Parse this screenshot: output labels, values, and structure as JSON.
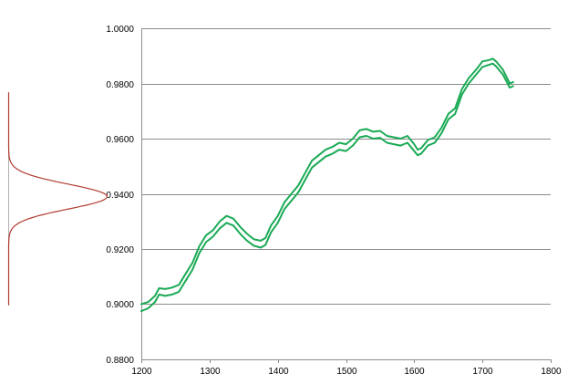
{
  "chart_data": [
    {
      "type": "line",
      "title": "",
      "xlabel": "",
      "ylabel": "",
      "xlim": [
        1200,
        1800
      ],
      "ylim": [
        0.88,
        1.0
      ],
      "x_ticks": [
        "1200",
        "1300",
        "1400",
        "1500",
        "1600",
        "1700",
        "1800"
      ],
      "y_ticks": [
        "0.8800",
        "0.9000",
        "0.9200",
        "0.9400",
        "0.9600",
        "0.9800",
        "1.0000"
      ],
      "grid": "horizontal",
      "legend": "none",
      "colors": {
        "series": "#1aaa55",
        "gridline": "#8c8c8c",
        "axis": "#8c8c8c"
      },
      "series": [
        {
          "x": [
            1200,
            1210,
            1220,
            1226,
            1235,
            1245,
            1255,
            1265,
            1275,
            1285,
            1295,
            1305,
            1315,
            1325,
            1335,
            1345,
            1355,
            1365,
            1375,
            1382,
            1390,
            1400,
            1410,
            1420,
            1430,
            1440,
            1450,
            1460,
            1470,
            1480,
            1490,
            1500,
            1510,
            1520,
            1530,
            1540,
            1550,
            1560,
            1570,
            1580,
            1590,
            1600,
            1605,
            1610,
            1620,
            1630,
            1640,
            1650,
            1660,
            1670,
            1680,
            1690,
            1700,
            1710,
            1715,
            1720,
            1730,
            1740,
            1745
          ],
          "y": [
            0.9,
            0.9008,
            0.903,
            0.9058,
            0.9055,
            0.906,
            0.907,
            0.911,
            0.915,
            0.921,
            0.925,
            0.9268,
            0.93,
            0.932,
            0.931,
            0.928,
            0.9255,
            0.9235,
            0.923,
            0.924,
            0.9285,
            0.932,
            0.937,
            0.94,
            0.943,
            0.9475,
            0.952,
            0.954,
            0.956,
            0.957,
            0.9585,
            0.958,
            0.96,
            0.963,
            0.9635,
            0.9625,
            0.9628,
            0.961,
            0.9605,
            0.96,
            0.961,
            0.958,
            0.956,
            0.9565,
            0.9595,
            0.9605,
            0.964,
            0.969,
            0.971,
            0.978,
            0.982,
            0.9848,
            0.988,
            0.9885,
            0.989,
            0.988,
            0.985,
            0.98,
            0.9805
          ]
        },
        {
          "x": [
            1200,
            1210,
            1220,
            1226,
            1235,
            1245,
            1255,
            1265,
            1275,
            1285,
            1295,
            1305,
            1315,
            1325,
            1335,
            1345,
            1355,
            1365,
            1375,
            1382,
            1390,
            1400,
            1410,
            1420,
            1430,
            1440,
            1450,
            1460,
            1470,
            1480,
            1490,
            1500,
            1510,
            1520,
            1530,
            1540,
            1550,
            1560,
            1570,
            1580,
            1590,
            1600,
            1605,
            1610,
            1620,
            1630,
            1640,
            1650,
            1660,
            1670,
            1680,
            1690,
            1700,
            1710,
            1715,
            1720,
            1730,
            1740,
            1745
          ],
          "y": [
            0.8975,
            0.8985,
            0.9008,
            0.9035,
            0.903,
            0.9035,
            0.9045,
            0.9085,
            0.9125,
            0.9185,
            0.9225,
            0.9245,
            0.9275,
            0.9295,
            0.9285,
            0.9255,
            0.923,
            0.9212,
            0.9205,
            0.9215,
            0.926,
            0.9295,
            0.9345,
            0.9375,
            0.9405,
            0.945,
            0.9495,
            0.9515,
            0.9535,
            0.9545,
            0.956,
            0.9555,
            0.9575,
            0.9605,
            0.961,
            0.96,
            0.9603,
            0.9585,
            0.958,
            0.9575,
            0.9585,
            0.9555,
            0.954,
            0.9545,
            0.9575,
            0.9585,
            0.962,
            0.967,
            0.969,
            0.976,
            0.98,
            0.983,
            0.986,
            0.9868,
            0.9872,
            0.9862,
            0.9832,
            0.9785,
            0.979
          ]
        }
      ]
    },
    {
      "type": "line",
      "title": "",
      "xlabel": "",
      "ylabel": "",
      "description_type": "density",
      "center": 0.939,
      "spread": 0.0045,
      "range": [
        0.8996,
        0.9768
      ],
      "colors": {
        "curve": "#b03a2e",
        "baseline": "#b0b0b0"
      }
    }
  ]
}
